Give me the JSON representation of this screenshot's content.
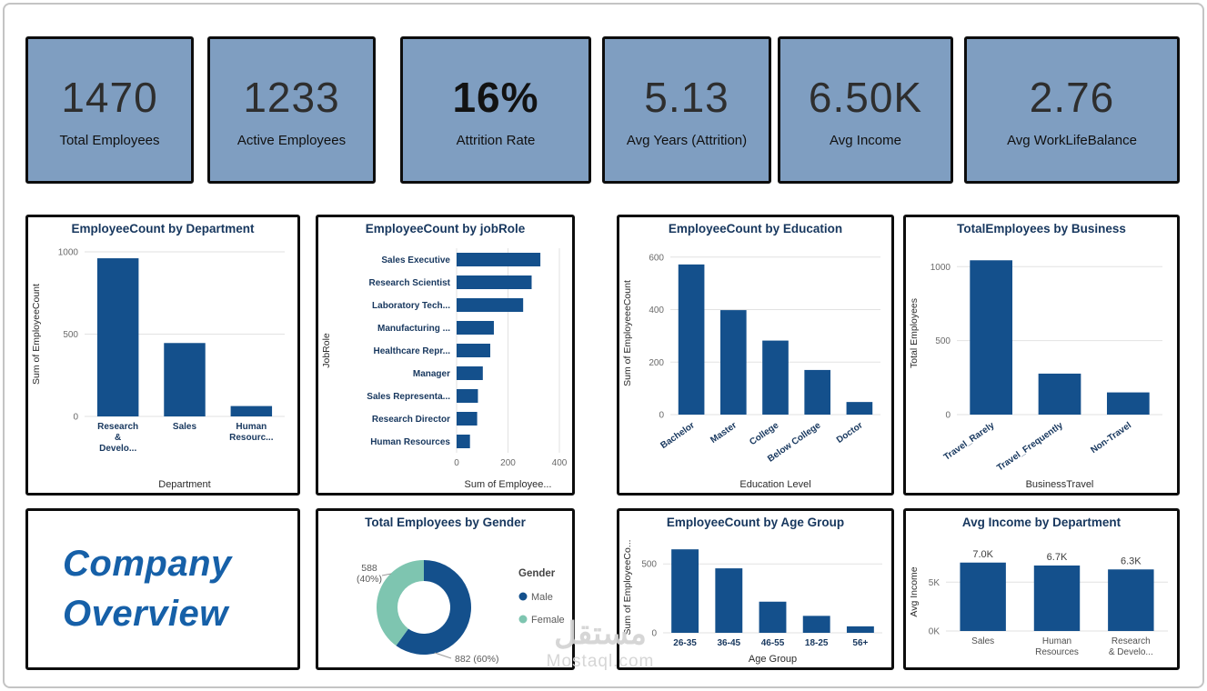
{
  "colors": {
    "bar": "#14508C",
    "male": "#14508C",
    "female": "#7EC5B0",
    "kpi_bg": "#7F9EC1",
    "title": "#17375E",
    "category_label": "#17375E",
    "tick": "#6a6a6a",
    "axis_title": "#2b2b2b",
    "gridline": "#e2e2e2",
    "company_text": "#1660A8",
    "callout": "#9a9a9a"
  },
  "kpis": [
    {
      "value": "1470",
      "label": "Total Employees",
      "bold": false
    },
    {
      "value": "1233",
      "label": "Active Employees",
      "bold": false
    },
    {
      "value": "16%",
      "label": "Attrition Rate",
      "bold": true
    },
    {
      "value": "5.13",
      "label": "Avg Years (Attrition)",
      "bold": false
    },
    {
      "value": "6.50K",
      "label": "Avg Income",
      "bold": false
    },
    {
      "value": "2.76",
      "label": "Avg WorkLifeBalance",
      "bold": false
    }
  ],
  "company_card": {
    "line1": "Company",
    "line2": "Overview"
  },
  "watermark": {
    "arabic": "مستقل",
    "latin": "Mostaql.com"
  },
  "chart_data": [
    {
      "id": "employeecount-by-department",
      "type": "bar",
      "title": "EmployeeCount by Department",
      "categories": [
        "Research\n&\nDevelo...",
        "Sales",
        "Human\nResourc..."
      ],
      "values": [
        961,
        446,
        63
      ],
      "ylabel": "Sum of EmployeeCount",
      "xlabel": "Department",
      "ytick_values": [
        0,
        500,
        1000
      ],
      "ytick_labels": [
        "0",
        "500",
        "1000"
      ],
      "ylim": [
        0,
        1000
      ],
      "rotate_labels": 0,
      "grid": true,
      "margins": {
        "l": 62,
        "r": 14,
        "t": 12,
        "b": 84
      }
    },
    {
      "id": "employeecount-by-jobrole",
      "type": "bar-h",
      "title": "EmployeeCount by jobRole",
      "categories": [
        "Sales Executive",
        "Research Scientist",
        "Laboratory Tech...",
        "Manufacturing ...",
        "Healthcare Repr...",
        "Manager",
        "Sales Representa...",
        "Research Director",
        "Human Resources"
      ],
      "values": [
        326,
        292,
        259,
        145,
        131,
        102,
        83,
        80,
        52
      ],
      "xlabel": "Sum of Employee...",
      "ylabel": "JobRole",
      "xtick_values": [
        0,
        200,
        400
      ],
      "xtick_labels": [
        "0",
        "200",
        "400"
      ],
      "xlim": [
        0,
        400
      ],
      "grid": true,
      "margins": {
        "l": 152,
        "r": 14,
        "t": 8,
        "b": 44
      }
    },
    {
      "id": "employeecount-by-education",
      "type": "bar",
      "title": "EmployeeCount by Education",
      "categories": [
        "Bachelor",
        "Master",
        "College",
        "Below College",
        "Doctor"
      ],
      "values": [
        572,
        398,
        282,
        170,
        48
      ],
      "ylabel": "Sum of EmployeeeCount",
      "xlabel": "Education Level",
      "ytick_values": [
        0,
        200,
        400,
        600
      ],
      "ytick_labels": [
        "0",
        "200",
        "400",
        "600"
      ],
      "ylim": [
        0,
        620
      ],
      "rotate_labels": -35,
      "grid": true,
      "margins": {
        "l": 56,
        "r": 12,
        "t": 12,
        "b": 86
      }
    },
    {
      "id": "totalemployees-by-business",
      "type": "bar",
      "title": "TotalEmployees by Business",
      "categories": [
        "Travel_Rarely",
        "Travel_Frequently",
        "Non-Travel"
      ],
      "values": [
        1043,
        277,
        150
      ],
      "ylabel": "Total Employees",
      "xlabel": "BusinessTravel",
      "ytick_values": [
        0,
        500,
        1000
      ],
      "ytick_labels": [
        "0",
        "500",
        "1000"
      ],
      "ylim": [
        0,
        1100
      ],
      "rotate_labels": -35,
      "grid": true,
      "margins": {
        "l": 56,
        "r": 16,
        "t": 12,
        "b": 86
      }
    },
    {
      "id": "total-employees-by-gender",
      "type": "donut",
      "title": "Total Employees by Gender",
      "cx": 116,
      "cy": 80,
      "outer_r": 52,
      "inner_r": 29,
      "slices": [
        {
          "name": "Male",
          "value": 882,
          "pct": 60,
          "color_key": "male"
        },
        {
          "name": "Female",
          "value": 588,
          "pct": 40,
          "color_key": "female"
        }
      ],
      "legend": {
        "title": "Gender",
        "items": [
          {
            "label": "Male",
            "color_key": "male"
          },
          {
            "label": "Female",
            "color_key": "female"
          }
        ]
      },
      "callouts": [
        {
          "text_lines": [
            "588",
            "(40%)"
          ],
          "x": 56,
          "y": 40,
          "anchor": "middle",
          "line": [
            70,
            45,
            80,
            43
          ]
        },
        {
          "text_lines": [
            "882 (60%)"
          ],
          "x": 150,
          "y": 140,
          "anchor": "start",
          "line": [
            128,
            130,
            146,
            136
          ]
        }
      ]
    },
    {
      "id": "employeecount-by-age-group",
      "type": "bar",
      "title": "EmployeeCount by Age Group",
      "categories": [
        "26-35",
        "36-45",
        "46-55",
        "18-25",
        "56+"
      ],
      "values": [
        606,
        468,
        226,
        123,
        47
      ],
      "ylabel": "Sum of EmployeeCo...",
      "xlabel": "Age Group",
      "ytick_values": [
        0,
        500
      ],
      "ytick_labels": [
        "0",
        "500"
      ],
      "ylim": [
        0,
        660
      ],
      "rotate_labels": 0,
      "grid": true,
      "margins": {
        "l": 48,
        "r": 10,
        "t": 8,
        "b": 38
      }
    },
    {
      "id": "avg-income-by-department",
      "type": "bar",
      "title": "Avg Income by Department",
      "categories": [
        "Sales",
        "Human\nResources",
        "Research\n& Develo..."
      ],
      "values": [
        7.0,
        6.7,
        6.3
      ],
      "value_labels": [
        "7.0K",
        "6.7K",
        "6.3K"
      ],
      "ylabel": "Avg Income",
      "xlabel": "",
      "ytick_values": [
        0,
        5
      ],
      "ytick_labels": [
        "0K",
        "5K"
      ],
      "ylim": [
        0,
        8
      ],
      "rotate_labels": 0,
      "category_color": "#4f4f4f",
      "category_bold": false,
      "grid": true,
      "margins": {
        "l": 44,
        "r": 10,
        "t": 20,
        "b": 40
      }
    }
  ]
}
